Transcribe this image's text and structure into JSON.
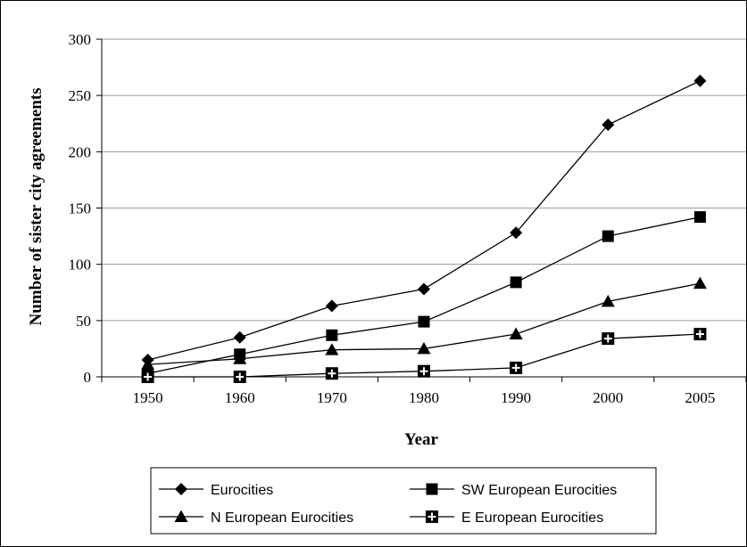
{
  "chart_data": {
    "type": "line",
    "x": [
      "1950",
      "1960",
      "1970",
      "1980",
      "1990",
      "2000",
      "2005"
    ],
    "xlabel": "Year",
    "ylabel": "Number of sister city agreements",
    "ylim": [
      0,
      300
    ],
    "yticks": [
      0,
      50,
      100,
      150,
      200,
      250,
      300
    ],
    "grid": "horizontal",
    "legend_position": "bottom",
    "series": [
      {
        "name": "Eurocities",
        "marker": "diamond",
        "values": [
          15,
          35,
          63,
          78,
          128,
          224,
          263
        ]
      },
      {
        "name": "SW European Eurocities",
        "marker": "square",
        "values": [
          3,
          20,
          37,
          49,
          84,
          125,
          142
        ]
      },
      {
        "name": "N European Eurocities",
        "marker": "triangle",
        "values": [
          11,
          16,
          24,
          25,
          38,
          67,
          83
        ]
      },
      {
        "name": "E European Eurocities",
        "marker": "square-cross",
        "values": [
          0,
          0,
          3,
          5,
          8,
          34,
          38
        ]
      }
    ]
  }
}
